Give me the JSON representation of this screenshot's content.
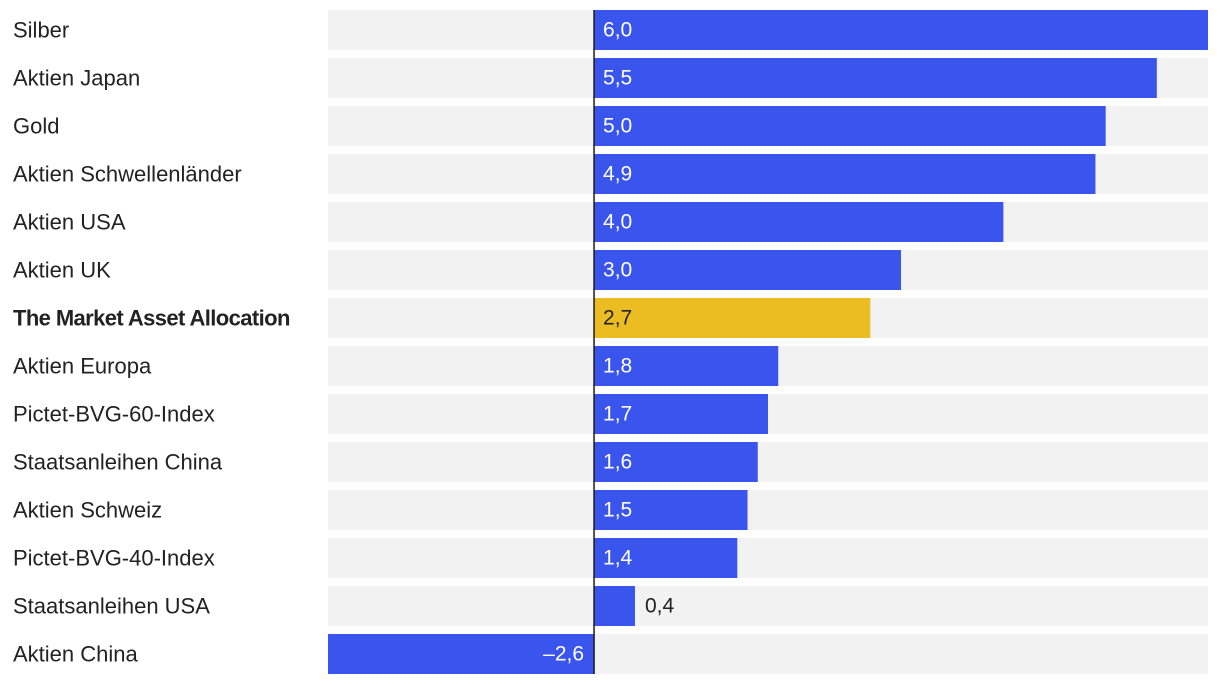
{
  "chart_data": {
    "type": "bar",
    "orientation": "horizontal",
    "categories": [
      "Silber",
      "Aktien Japan",
      "Gold",
      "Aktien Schwellenländer",
      "Aktien USA",
      "Aktien UK",
      "The Market Asset Allocation",
      "Aktien Europa",
      "Pictet-BVG-60-Index",
      "Staatsanleihen China",
      "Aktien Schweiz",
      "Pictet-BVG-40-Index",
      "Staatsanleihen USA",
      "Aktien China"
    ],
    "values": [
      6.0,
      5.5,
      5.0,
      4.9,
      4.0,
      3.0,
      2.7,
      1.8,
      1.7,
      1.6,
      1.5,
      1.4,
      0.4,
      -2.6
    ],
    "value_labels": [
      "6,0",
      "5,5",
      "5,0",
      "4,9",
      "4,0",
      "3,0",
      "2,7",
      "1,8",
      "1,7",
      "1,6",
      "1,5",
      "1,4",
      "0,4",
      "–2,6"
    ],
    "highlight_index": 6,
    "xlim": [
      -2.6,
      6.0
    ],
    "title": "",
    "xlabel": "",
    "ylabel": "",
    "grid": false,
    "colors": {
      "bar": "#3a55ed",
      "highlight_bar": "#ebbd22",
      "track": "#f2f2f2",
      "zero_line": "#1a1a1a",
      "label_on_bar": "#ffffff",
      "label_dark": "#222222"
    }
  }
}
